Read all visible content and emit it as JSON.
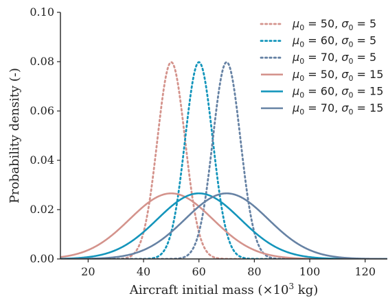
{
  "chart_data": {
    "type": "line",
    "xlabel_prefix": "Aircraft initial mass (×10",
    "xlabel_exp": "3",
    "xlabel_suffix": " kg)",
    "ylabel": "Probability density (-)",
    "xlim": [
      10,
      128
    ],
    "ylim": [
      0,
      0.1
    ],
    "xticks": [
      "20",
      "40",
      "60",
      "80",
      "100",
      "120"
    ],
    "xtick_values": [
      20,
      40,
      60,
      80,
      100,
      120
    ],
    "yticks": [
      "0.00",
      "0.02",
      "0.04",
      "0.06",
      "0.08",
      "0.10"
    ],
    "ytick_values": [
      0,
      0.02,
      0.04,
      0.06,
      0.08,
      0.1
    ],
    "legend_position": "top-right",
    "series": [
      {
        "mu": 50,
        "sigma": 5,
        "style": "dotted",
        "color": "#d4938c",
        "legend": {
          "mu_text": " = 50, ",
          "sigma_text": " = 5"
        }
      },
      {
        "mu": 60,
        "sigma": 5,
        "style": "dotted",
        "color": "#1495bb",
        "legend": {
          "mu_text": " = 60, ",
          "sigma_text": " = 5"
        }
      },
      {
        "mu": 70,
        "sigma": 5,
        "style": "dotted",
        "color": "#6682a4",
        "legend": {
          "mu_text": " = 70, ",
          "sigma_text": " = 5"
        }
      },
      {
        "mu": 50,
        "sigma": 15,
        "style": "solid",
        "color": "#d4938c",
        "legend": {
          "mu_text": " = 50, ",
          "sigma_text": " = 15"
        }
      },
      {
        "mu": 60,
        "sigma": 15,
        "style": "solid",
        "color": "#1495bb",
        "legend": {
          "mu_text": " = 60, ",
          "sigma_text": " = 15"
        }
      },
      {
        "mu": 70,
        "sigma": 15,
        "style": "solid",
        "color": "#6682a4",
        "legend": {
          "mu_text": " = 70, ",
          "sigma_text": " = 15"
        }
      }
    ],
    "legend_symbols": {
      "mu": "μ",
      "sigma": "σ",
      "sub": "0"
    }
  }
}
